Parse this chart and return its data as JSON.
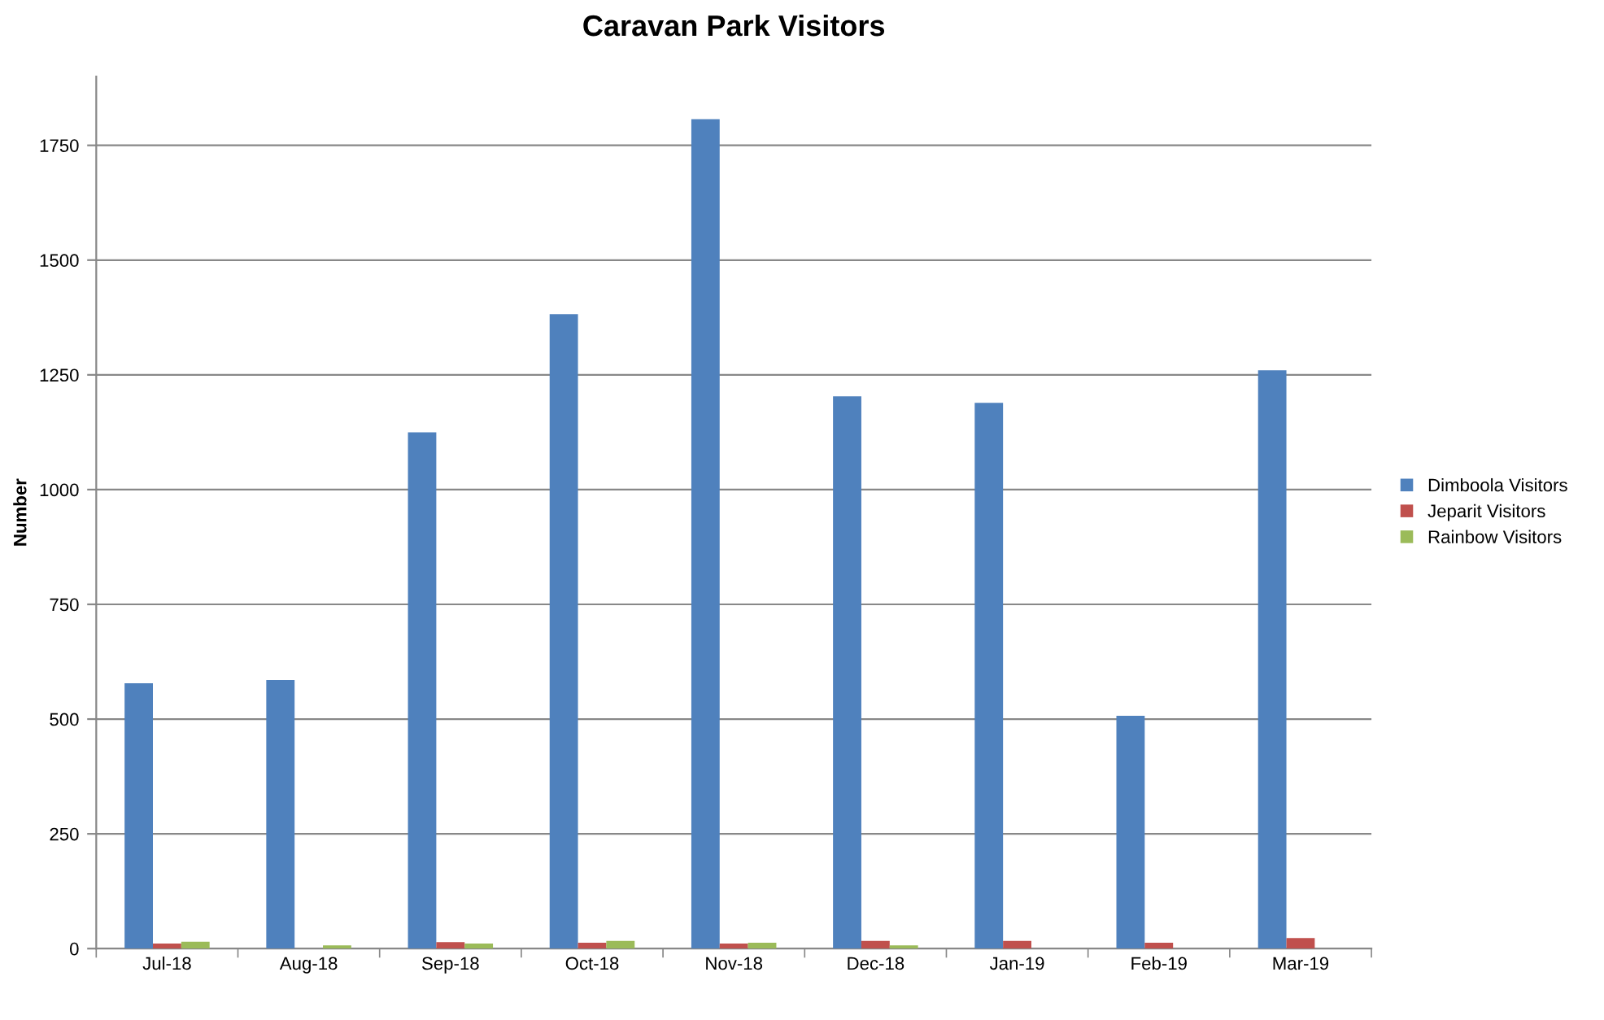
{
  "chart_data": {
    "type": "bar",
    "title": "Caravan Park Visitors",
    "ylabel": "Number",
    "categories": [
      "Jul-18",
      "Aug-18",
      "Sep-18",
      "Oct-18",
      "Nov-18",
      "Dec-18",
      "Jan-19",
      "Feb-19",
      "Mar-19"
    ],
    "series": [
      {
        "name": "Dimboola Visitors",
        "color": "#4f81bd",
        "values": [
          578,
          585,
          1125,
          1382,
          1807,
          1203,
          1189,
          507,
          1260
        ]
      },
      {
        "name": "Jeparit Visitors",
        "color": "#c0504d",
        "values": [
          11,
          0,
          14,
          13,
          11,
          17,
          17,
          13,
          23
        ]
      },
      {
        "name": "Rainbow Visitors",
        "color": "#9bbb59",
        "values": [
          15,
          7,
          11,
          17,
          13,
          7,
          0,
          0,
          0
        ]
      }
    ],
    "ylim": [
      0,
      1900
    ],
    "yticks": [
      0,
      250,
      500,
      750,
      1000,
      1250,
      1500,
      1750
    ],
    "grid": "y",
    "legend": "right"
  }
}
